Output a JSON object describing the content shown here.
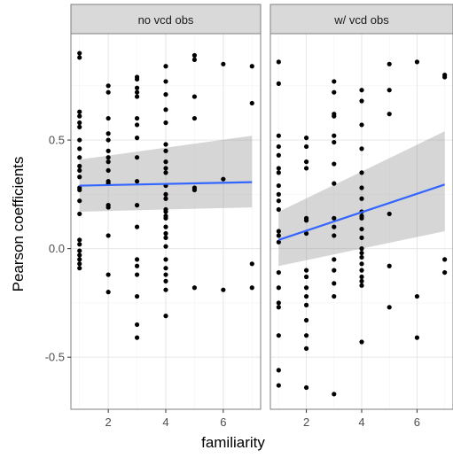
{
  "chart_data": {
    "type": "scatter",
    "xlabel": "familiarity",
    "ylabel": "Pearson coefficients",
    "xlim": [
      0.7,
      7.3
    ],
    "ylim": [
      -0.74,
      0.99
    ],
    "x_ticks": [
      "2",
      "4",
      "6"
    ],
    "y_ticks": [
      "-0.5",
      "0.0",
      "0.5"
    ],
    "grid": true,
    "legend": "none",
    "colors": {
      "panel_background": "#ffffff",
      "strip_background": "#d9d9d9",
      "grid_major": "#e6e6e6",
      "grid_minor": "#f3f3f3",
      "points": "#000000",
      "fit_line": "#3366ff",
      "confidence_band": "#999999"
    },
    "panels": [
      {
        "title": "no vcd obs",
        "points": [
          [
            1,
            0.9
          ],
          [
            1,
            0.88
          ],
          [
            1,
            0.63
          ],
          [
            1,
            0.61
          ],
          [
            1,
            0.58
          ],
          [
            1,
            0.56
          ],
          [
            1,
            0.5
          ],
          [
            1,
            0.46
          ],
          [
            1,
            0.42
          ],
          [
            1,
            0.38
          ],
          [
            1,
            0.36
          ],
          [
            1,
            0.33
          ],
          [
            1,
            0.28
          ],
          [
            1,
            0.27
          ],
          [
            1,
            0.22
          ],
          [
            1,
            0.16
          ],
          [
            1,
            0.04
          ],
          [
            1,
            0.02
          ],
          [
            1,
            -0.01
          ],
          [
            1,
            -0.03
          ],
          [
            1,
            -0.05
          ],
          [
            1,
            -0.07
          ],
          [
            1,
            -0.09
          ],
          [
            2,
            0.75
          ],
          [
            2,
            0.72
          ],
          [
            2,
            0.6
          ],
          [
            2,
            0.53
          ],
          [
            2,
            0.5
          ],
          [
            2,
            0.45
          ],
          [
            2,
            0.42
          ],
          [
            2,
            0.4
          ],
          [
            2,
            0.36
          ],
          [
            2,
            0.31
          ],
          [
            2,
            0.3
          ],
          [
            2,
            0.2
          ],
          [
            2,
            0.19
          ],
          [
            2,
            0.06
          ],
          [
            2,
            -0.12
          ],
          [
            2,
            -0.2
          ],
          [
            3,
            0.79
          ],
          [
            3,
            0.78
          ],
          [
            3,
            0.74
          ],
          [
            3,
            0.72
          ],
          [
            3,
            0.7
          ],
          [
            3,
            0.6
          ],
          [
            3,
            0.57
          ],
          [
            3,
            0.51
          ],
          [
            3,
            0.42
          ],
          [
            3,
            0.31
          ],
          [
            3,
            0.2
          ],
          [
            3,
            0.1
          ],
          [
            3,
            -0.05
          ],
          [
            3,
            -0.08
          ],
          [
            3,
            -0.12
          ],
          [
            3,
            -0.22
          ],
          [
            3,
            -0.35
          ],
          [
            3,
            -0.41
          ],
          [
            4,
            0.84
          ],
          [
            4,
            0.77
          ],
          [
            4,
            0.71
          ],
          [
            4,
            0.64
          ],
          [
            4,
            0.58
          ],
          [
            4,
            0.48
          ],
          [
            4,
            0.45
          ],
          [
            4,
            0.4
          ],
          [
            4,
            0.37
          ],
          [
            4,
            0.35
          ],
          [
            4,
            0.29
          ],
          [
            4,
            0.25
          ],
          [
            4,
            0.23
          ],
          [
            4,
            0.18
          ],
          [
            4,
            0.17
          ],
          [
            4,
            0.15
          ],
          [
            4,
            0.14
          ],
          [
            4,
            0.1
          ],
          [
            4,
            0.07
          ],
          [
            4,
            0.05
          ],
          [
            4,
            0.01
          ],
          [
            4,
            -0.05
          ],
          [
            4,
            -0.09
          ],
          [
            4,
            -0.12
          ],
          [
            4,
            -0.15
          ],
          [
            4,
            -0.19
          ],
          [
            4,
            -0.31
          ],
          [
            5,
            0.89
          ],
          [
            5,
            0.87
          ],
          [
            5,
            0.7
          ],
          [
            5,
            0.6
          ],
          [
            5,
            0.28
          ],
          [
            5,
            0.27
          ],
          [
            5,
            -0.18
          ],
          [
            6,
            0.85
          ],
          [
            6,
            0.32
          ],
          [
            6,
            -0.19
          ],
          [
            7,
            0.84
          ],
          [
            7,
            0.67
          ],
          [
            7,
            -0.07
          ],
          [
            7,
            -0.18
          ]
        ],
        "fit": {
          "x": [
            1,
            7
          ],
          "y": [
            0.29,
            0.306
          ],
          "lower": [
            0.17,
            0.19
          ],
          "upper": [
            0.41,
            0.52
          ]
        }
      },
      {
        "title": "w/ vcd obs",
        "points": [
          [
            1,
            0.86
          ],
          [
            1,
            0.76
          ],
          [
            1,
            0.52
          ],
          [
            1,
            0.47
          ],
          [
            1,
            0.43
          ],
          [
            1,
            0.37
          ],
          [
            1,
            0.35
          ],
          [
            1,
            0.29
          ],
          [
            1,
            0.25
          ],
          [
            1,
            0.22
          ],
          [
            1,
            0.18
          ],
          [
            1,
            0.08
          ],
          [
            1,
            0.06
          ],
          [
            1,
            0.03
          ],
          [
            1,
            -0.11
          ],
          [
            1,
            -0.18
          ],
          [
            1,
            -0.25
          ],
          [
            1,
            -0.27
          ],
          [
            1,
            -0.4
          ],
          [
            1,
            -0.56
          ],
          [
            1,
            -0.63
          ],
          [
            2,
            0.51
          ],
          [
            2,
            0.47
          ],
          [
            2,
            0.4
          ],
          [
            2,
            0.37
          ],
          [
            2,
            0.14
          ],
          [
            2,
            0.13
          ],
          [
            2,
            0.07
          ],
          [
            2,
            -0.1
          ],
          [
            2,
            -0.13
          ],
          [
            2,
            -0.18
          ],
          [
            2,
            -0.22
          ],
          [
            2,
            -0.26
          ],
          [
            2,
            -0.33
          ],
          [
            2,
            -0.4
          ],
          [
            2,
            -0.46
          ],
          [
            2,
            -0.64
          ],
          [
            3,
            0.77
          ],
          [
            3,
            0.72
          ],
          [
            3,
            0.62
          ],
          [
            3,
            0.61
          ],
          [
            3,
            0.52
          ],
          [
            3,
            0.49
          ],
          [
            3,
            0.39
          ],
          [
            3,
            0.3
          ],
          [
            3,
            0.14
          ],
          [
            3,
            0.1
          ],
          [
            3,
            0.06
          ],
          [
            3,
            -0.05
          ],
          [
            3,
            -0.1
          ],
          [
            3,
            -0.16
          ],
          [
            3,
            -0.22
          ],
          [
            3,
            -0.67
          ],
          [
            4,
            0.73
          ],
          [
            4,
            0.68
          ],
          [
            4,
            0.57
          ],
          [
            4,
            0.46
          ],
          [
            4,
            0.35
          ],
          [
            4,
            0.28
          ],
          [
            4,
            0.23
          ],
          [
            4,
            0.17
          ],
          [
            4,
            0.15
          ],
          [
            4,
            0.14
          ],
          [
            4,
            0.09
          ],
          [
            4,
            0.05
          ],
          [
            4,
            0.0
          ],
          [
            4,
            -0.02
          ],
          [
            4,
            -0.04
          ],
          [
            4,
            -0.07
          ],
          [
            4,
            -0.1
          ],
          [
            4,
            -0.13
          ],
          [
            4,
            -0.15
          ],
          [
            4,
            -0.17
          ],
          [
            4,
            -0.43
          ],
          [
            5,
            0.85
          ],
          [
            5,
            0.73
          ],
          [
            5,
            0.62
          ],
          [
            5,
            0.16
          ],
          [
            5,
            -0.08
          ],
          [
            5,
            -0.27
          ],
          [
            6,
            0.86
          ],
          [
            6,
            -0.22
          ],
          [
            6,
            -0.41
          ],
          [
            7,
            0.8
          ],
          [
            7,
            0.79
          ],
          [
            7,
            -0.05
          ],
          [
            7,
            -0.11
          ]
        ],
        "fit": {
          "x": [
            1,
            7
          ],
          "y": [
            0.04,
            0.295
          ],
          "lower": [
            -0.08,
            0.08
          ],
          "upper": [
            0.17,
            0.54
          ]
        }
      }
    ]
  }
}
